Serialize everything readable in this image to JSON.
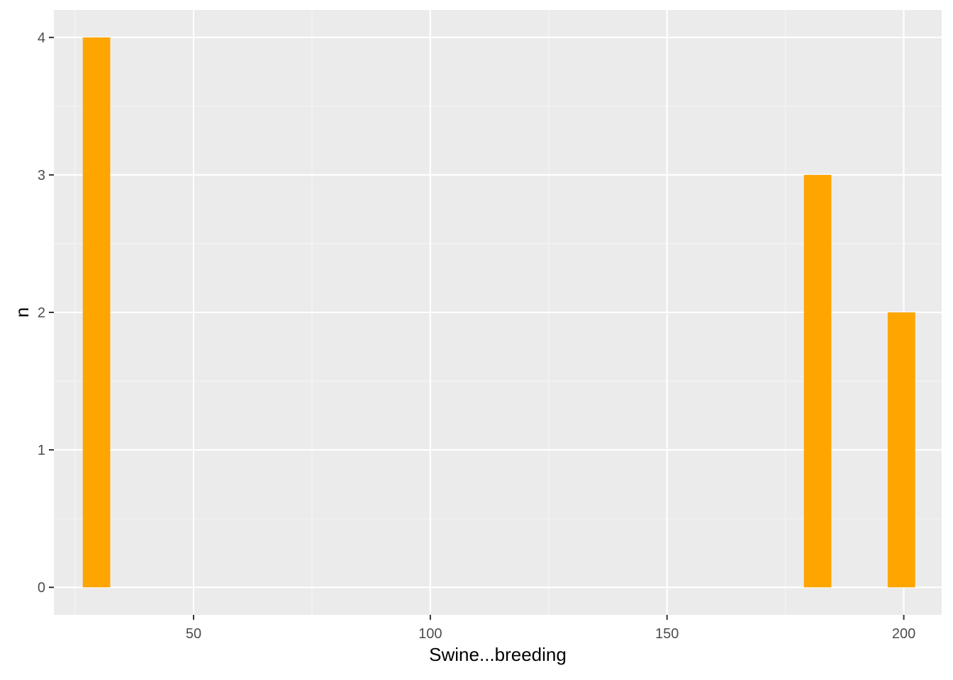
{
  "chart_data": {
    "type": "bar",
    "xlabel": "Swine...breeding",
    "ylabel": "n",
    "xlim": [
      20.5,
      208
    ],
    "ylim": [
      -0.2,
      4.2
    ],
    "x_ticks": [
      50,
      100,
      150,
      200
    ],
    "y_ticks": [
      0,
      1,
      2,
      3,
      4
    ],
    "grid": true,
    "bin_width": 5.8,
    "bars": [
      {
        "x_center": 29.5,
        "value": 4
      },
      {
        "x_center": 181.8,
        "value": 3
      },
      {
        "x_center": 199.5,
        "value": 2
      }
    ],
    "colors": {
      "bar": "#FFA500",
      "panel_background": "#EBEBEB",
      "grid_major": "#FFFFFF",
      "grid_minor": "#F5F5F5",
      "tick_label": "#4D4D4D",
      "axis_title": "#000000"
    }
  }
}
